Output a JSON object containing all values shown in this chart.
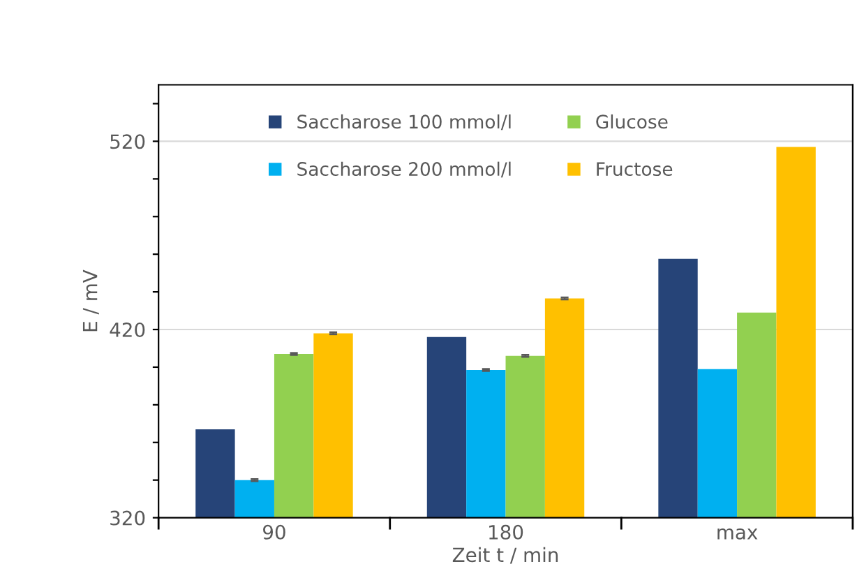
{
  "chart_data": {
    "type": "bar",
    "xlabel": "Zeit t / min",
    "ylabel": "E / mV",
    "categories": [
      "90",
      "180",
      "max"
    ],
    "series": [
      {
        "name": "Saccharose 100 mmol/l",
        "color": "#264478",
        "values": [
          367,
          416,
          457.6
        ]
      },
      {
        "name": "Saccharose 200 mmol/l",
        "color": "#00b0f0",
        "values": [
          340,
          398.5,
          399
        ],
        "errors": [
          0.5,
          0.5,
          null
        ]
      },
      {
        "name": "Glucose",
        "color": "#92d050",
        "values": [
          407,
          406,
          429
        ],
        "errors": [
          0.5,
          0.5,
          null
        ]
      },
      {
        "name": "Fructose",
        "color": "#ffc000",
        "values": [
          418,
          436.5,
          517
        ],
        "errors": [
          0.5,
          0.5,
          null
        ]
      }
    ],
    "ylim": [
      320,
      550
    ],
    "yticks": [
      320,
      {
        "value": 340,
        "label": null
      },
      {
        "value": 360,
        "label": null
      },
      {
        "value": 380,
        "label": null
      },
      {
        "value": 400,
        "label": null
      },
      420,
      {
        "value": 440,
        "label": null
      },
      {
        "value": 460,
        "label": null
      },
      {
        "value": 480,
        "label": null
      },
      {
        "value": 500,
        "label": null
      },
      520,
      {
        "value": 540,
        "label": null
      }
    ],
    "grid": "y",
    "legend": "top"
  }
}
